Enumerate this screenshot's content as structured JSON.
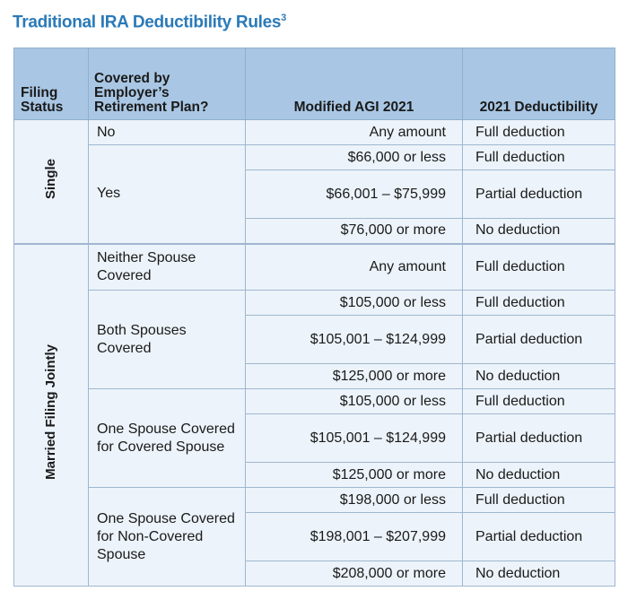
{
  "title": "Traditional IRA Deductibility Rules",
  "title_footnote": "3",
  "headers": {
    "filing_status": "Filing Status",
    "covered": "Covered by Employer’s Retirement Plan?",
    "agi": "Modified AGI 2021",
    "deductibility": "2021 Deductibility"
  },
  "groups": {
    "single": {
      "status": "Single",
      "no_label": "No",
      "yes_label": "Yes",
      "rows": [
        {
          "agi": "Any amount",
          "ded": "Full deduction"
        },
        {
          "agi": "$66,000 or less",
          "ded": "Full deduction"
        },
        {
          "agi": "$66,001 – $75,999",
          "ded": "Partial deduction"
        },
        {
          "agi": "$76,000 or more",
          "ded": "No deduction"
        }
      ]
    },
    "married": {
      "status": "Married Filing Jointly",
      "neither_label": "Neither Spouse Covered",
      "both_label": "Both Spouses Covered",
      "one_covered_label": "One Spouse Covered for Covered Spouse",
      "one_noncovered_label": "One Spouse Covered for Non-Covered Spouse",
      "rows": [
        {
          "agi": "Any amount",
          "ded": "Full deduction"
        },
        {
          "agi": "$105,000 or less",
          "ded": "Full deduction"
        },
        {
          "agi": "$105,001 – $124,999",
          "ded": "Partial deduction"
        },
        {
          "agi": "$125,000 or more",
          "ded": "No deduction"
        },
        {
          "agi": "$105,000 or less",
          "ded": "Full deduction"
        },
        {
          "agi": "$105,001 – $124,999",
          "ded": "Partial deduction"
        },
        {
          "agi": "$125,000 or more",
          "ded": "No deduction"
        },
        {
          "agi": "$198,000 or less",
          "ded": "Full deduction"
        },
        {
          "agi": "$198,001 – $207,999",
          "ded": "Partial deduction"
        },
        {
          "agi": "$208,000 or more",
          "ded": "No deduction"
        }
      ]
    }
  }
}
